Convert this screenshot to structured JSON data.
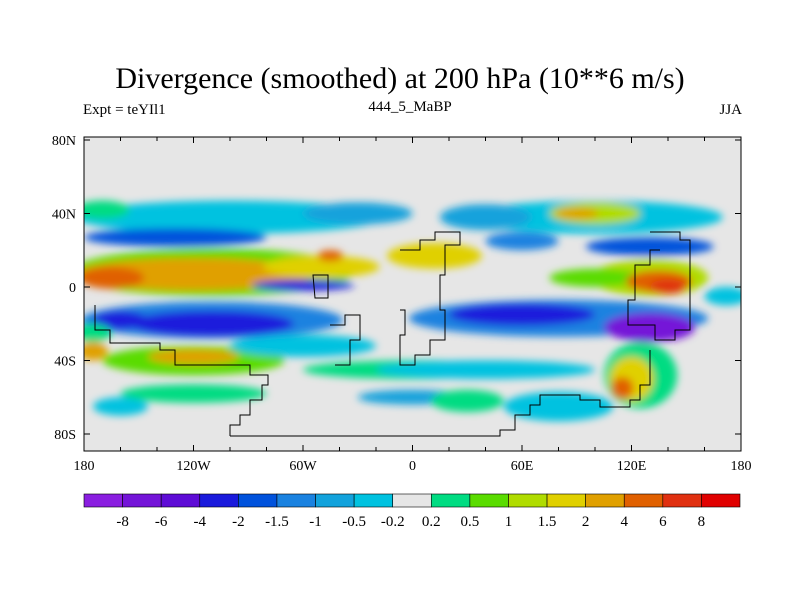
{
  "title": "Divergence (smoothed) at 200 hPa (10**6 m/s)",
  "left_string": "Expt = teYIl1",
  "center_string": "444_5_MaBP",
  "right_string": "JJA",
  "chart_data": {
    "type": "heatmap",
    "projection": "cylindrical-equidistant",
    "xlim": [
      -180,
      180
    ],
    "ylim": [
      -90,
      90
    ],
    "x_ticks": [
      {
        "value": -180,
        "label": "180"
      },
      {
        "value": -120,
        "label": "120W"
      },
      {
        "value": -60,
        "label": "60W"
      },
      {
        "value": 0,
        "label": "0"
      },
      {
        "value": 60,
        "label": "60E"
      },
      {
        "value": 120,
        "label": "120E"
      },
      {
        "value": 180,
        "label": "180"
      }
    ],
    "y_ticks": [
      {
        "value": 80,
        "label": "80N"
      },
      {
        "value": 40,
        "label": "40N"
      },
      {
        "value": 0,
        "label": "0"
      },
      {
        "value": -40,
        "label": "40S"
      },
      {
        "value": -80,
        "label": "80S"
      }
    ],
    "levels": [
      "-8",
      "-6",
      "-4",
      "-2",
      "-1.5",
      "-1",
      "-0.5",
      "-0.2",
      "0.2",
      "0.5",
      "1",
      "1.5",
      "2",
      "4",
      "6",
      "8"
    ],
    "colors": [
      "#8a1ee0",
      "#7414d8",
      "#5e0cd6",
      "#1a1adc",
      "#0052dc",
      "#1a82e0",
      "#12a2dc",
      "#00c2e0",
      "#e6e6e6",
      "#00dc82",
      "#5adc00",
      "#b0dc00",
      "#e0d000",
      "#e0a000",
      "#e06000",
      "#e03010",
      "#e00000"
    ],
    "features_note": "approximate field anomalies: [lon, lat, lon_halfwidth, lat_halfwidth, color_index]",
    "features": [
      [
        -100,
        38,
        85,
        9,
        7
      ],
      [
        100,
        38,
        70,
        9,
        7
      ],
      [
        -170,
        42,
        15,
        5,
        9
      ],
      [
        -30,
        40,
        30,
        6,
        6
      ],
      [
        40,
        38,
        25,
        7,
        6
      ],
      [
        -110,
        8,
        78,
        13,
        10
      ],
      [
        -120,
        7,
        65,
        9,
        13
      ],
      [
        -165,
        5,
        18,
        6,
        14
      ],
      [
        -50,
        11,
        32,
        6,
        12
      ],
      [
        12,
        17,
        26,
        7,
        12
      ],
      [
        -45,
        17,
        7,
        3,
        14
      ],
      [
        -130,
        27,
        50,
        5,
        4
      ],
      [
        -60,
        1,
        28,
        3,
        3
      ],
      [
        -110,
        -18,
        72,
        10,
        5
      ],
      [
        -110,
        -20,
        45,
        7,
        3
      ],
      [
        -160,
        -18,
        15,
        5,
        3
      ],
      [
        -120,
        -40,
        50,
        8,
        10
      ],
      [
        -120,
        -38,
        25,
        4,
        13
      ],
      [
        0,
        -45,
        60,
        5,
        9
      ],
      [
        -60,
        -32,
        40,
        6,
        7
      ],
      [
        80,
        -17,
        82,
        10,
        5
      ],
      [
        60,
        -15,
        40,
        6,
        3
      ],
      [
        130,
        -22,
        25,
        8,
        1
      ],
      [
        130,
        5,
        32,
        10,
        11
      ],
      [
        100,
        5,
        25,
        5,
        10
      ],
      [
        135,
        3,
        18,
        6,
        14
      ],
      [
        140,
        0,
        10,
        4,
        15
      ],
      [
        172,
        -5,
        12,
        5,
        7
      ],
      [
        100,
        40,
        25,
        6,
        11
      ],
      [
        90,
        40,
        12,
        3,
        13
      ],
      [
        130,
        22,
        35,
        5,
        4
      ],
      [
        60,
        25,
        20,
        5,
        5
      ],
      [
        125,
        -48,
        20,
        18,
        9
      ],
      [
        120,
        -50,
        12,
        12,
        12
      ],
      [
        115,
        -55,
        6,
        6,
        14
      ],
      [
        40,
        -45,
        60,
        5,
        7
      ],
      [
        80,
        -65,
        30,
        8,
        7
      ],
      [
        -120,
        -58,
        40,
        5,
        9
      ],
      [
        0,
        -60,
        30,
        4,
        6
      ],
      [
        -160,
        -65,
        15,
        5,
        7
      ],
      [
        30,
        -62,
        20,
        6,
        9
      ],
      [
        -175,
        -25,
        10,
        5,
        9
      ],
      [
        -175,
        -35,
        8,
        5,
        13
      ]
    ]
  }
}
